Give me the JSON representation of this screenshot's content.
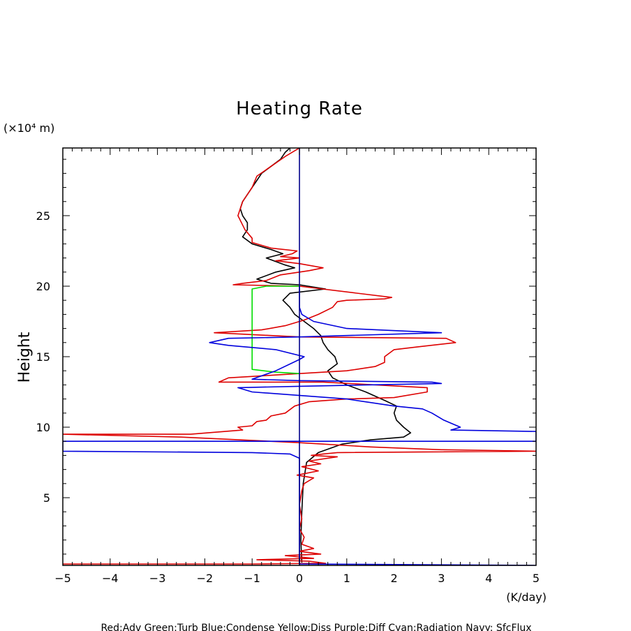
{
  "chart_data": {
    "type": "line",
    "title": "Heating Rate",
    "ylabel": "Height",
    "yunit": "(×10⁴ m)",
    "xunit": "(K/day)",
    "xlim": [
      -5,
      5
    ],
    "ylim": [
      0.2,
      29.8
    ],
    "xticks": [
      -5,
      -4,
      -3,
      -2,
      -1,
      0,
      1,
      2,
      3,
      4,
      5
    ],
    "yticks": [
      5,
      10,
      15,
      20,
      25
    ],
    "grid": false,
    "footer": "Red:Adv  Green:Turb  Blue:Condense  Yellow:Diss  Purple:Diff  Cyan:Radiation  Navy: SfcFlux",
    "colors": {
      "black": "#000000",
      "red": "#dd0000",
      "green": "#00dd00",
      "blue": "#0000dd",
      "navy": "#00008b"
    },
    "series": [
      {
        "color": "#000000",
        "points": [
          [
            0.05,
            0.4
          ],
          [
            0.03,
            2.0
          ],
          [
            0.05,
            4.0
          ],
          [
            0.08,
            6.0
          ],
          [
            0.15,
            7.5
          ],
          [
            0.4,
            8.2
          ],
          [
            0.9,
            8.8
          ],
          [
            1.5,
            9.1
          ],
          [
            2.2,
            9.3
          ],
          [
            2.35,
            9.6
          ],
          [
            2.2,
            10.0
          ],
          [
            2.05,
            10.5
          ],
          [
            2.0,
            11.0
          ],
          [
            2.05,
            11.5
          ],
          [
            1.8,
            11.9
          ],
          [
            1.4,
            12.5
          ],
          [
            1.0,
            13.0
          ],
          [
            0.7,
            13.5
          ],
          [
            0.6,
            14.0
          ],
          [
            0.8,
            14.5
          ],
          [
            0.75,
            15.0
          ],
          [
            0.6,
            15.5
          ],
          [
            0.5,
            16.0
          ],
          [
            0.45,
            16.5
          ],
          [
            0.3,
            17.0
          ],
          [
            0.1,
            17.5
          ],
          [
            -0.1,
            18.0
          ],
          [
            -0.2,
            18.5
          ],
          [
            -0.35,
            19.0
          ],
          [
            -0.2,
            19.5
          ],
          [
            0.55,
            19.8
          ],
          [
            0.0,
            20.1
          ],
          [
            -0.6,
            20.2
          ],
          [
            -0.9,
            20.5
          ],
          [
            -0.5,
            21.0
          ],
          [
            -0.1,
            21.3
          ],
          [
            -0.3,
            21.5
          ],
          [
            -0.7,
            22.0
          ],
          [
            -0.35,
            22.3
          ],
          [
            -0.6,
            22.6
          ],
          [
            -1.0,
            23.0
          ],
          [
            -1.2,
            23.5
          ],
          [
            -1.1,
            24.0
          ],
          [
            -1.1,
            24.5
          ],
          [
            -1.2,
            25.0
          ],
          [
            -1.25,
            25.5
          ],
          [
            -1.2,
            26.0
          ],
          [
            -1.1,
            26.5
          ],
          [
            -1.0,
            27.0
          ],
          [
            -0.9,
            27.5
          ],
          [
            -0.8,
            28.0
          ],
          [
            -0.6,
            28.5
          ],
          [
            -0.4,
            29.0
          ],
          [
            -0.3,
            29.5
          ],
          [
            -0.2,
            29.8
          ]
        ]
      },
      {
        "color": "#dd0000",
        "points": [
          [
            -5.0,
            0.3
          ],
          [
            -1.0,
            0.3
          ],
          [
            0.55,
            0.35
          ],
          [
            0.2,
            0.5
          ],
          [
            -0.9,
            0.6
          ],
          [
            0.3,
            0.7
          ],
          [
            -0.3,
            0.9
          ],
          [
            0.45,
            1.0
          ],
          [
            0.0,
            1.2
          ],
          [
            0.3,
            1.4
          ],
          [
            0.05,
            1.7
          ],
          [
            0.1,
            2.2
          ],
          [
            0.0,
            2.8
          ],
          [
            0.05,
            3.5
          ],
          [
            0.0,
            4.5
          ],
          [
            0.05,
            5.5
          ],
          [
            0.1,
            6.0
          ],
          [
            0.3,
            6.4
          ],
          [
            -0.05,
            6.6
          ],
          [
            0.4,
            6.9
          ],
          [
            0.05,
            7.2
          ],
          [
            0.45,
            7.4
          ],
          [
            0.2,
            7.6
          ],
          [
            0.8,
            7.9
          ],
          [
            0.25,
            8.0
          ],
          [
            0.5,
            8.1
          ],
          [
            0.8,
            8.2
          ],
          [
            5.0,
            8.3
          ],
          [
            3.0,
            8.4
          ],
          [
            1.5,
            8.6
          ],
          [
            0.0,
            8.9
          ],
          [
            -2.5,
            9.3
          ],
          [
            -5.0,
            9.5
          ],
          [
            -2.7,
            9.5
          ],
          [
            -2.3,
            9.5
          ],
          [
            -1.2,
            9.8
          ],
          [
            -1.3,
            10.0
          ],
          [
            -1.0,
            10.1
          ],
          [
            -0.9,
            10.4
          ],
          [
            -0.7,
            10.5
          ],
          [
            -0.6,
            10.8
          ],
          [
            -0.3,
            11.0
          ],
          [
            -0.1,
            11.5
          ],
          [
            0.2,
            11.8
          ],
          [
            1.0,
            12.0
          ],
          [
            2.0,
            12.1
          ],
          [
            2.7,
            12.5
          ],
          [
            2.7,
            12.8
          ],
          [
            0.5,
            13.2
          ],
          [
            -1.7,
            13.2
          ],
          [
            -1.5,
            13.5
          ],
          [
            0.0,
            13.8
          ],
          [
            1.0,
            14.0
          ],
          [
            1.6,
            14.3
          ],
          [
            1.8,
            14.6
          ],
          [
            1.8,
            15.0
          ],
          [
            2.0,
            15.5
          ],
          [
            2.5,
            15.7
          ],
          [
            3.3,
            16.0
          ],
          [
            3.1,
            16.3
          ],
          [
            0.0,
            16.4
          ],
          [
            -1.8,
            16.7
          ],
          [
            -0.8,
            16.9
          ],
          [
            -0.3,
            17.2
          ],
          [
            0.1,
            17.6
          ],
          [
            0.4,
            18.0
          ],
          [
            0.7,
            18.5
          ],
          [
            0.8,
            18.9
          ],
          [
            1.0,
            19.0
          ],
          [
            1.8,
            19.1
          ],
          [
            1.95,
            19.2
          ],
          [
            0.0,
            20.0
          ],
          [
            -1.4,
            20.1
          ],
          [
            -1.2,
            20.2
          ],
          [
            -0.7,
            20.4
          ],
          [
            -0.4,
            20.8
          ],
          [
            0.2,
            21.1
          ],
          [
            0.5,
            21.3
          ],
          [
            0.0,
            21.6
          ],
          [
            -0.5,
            21.8
          ],
          [
            0.0,
            22.0
          ],
          [
            -0.4,
            22.1
          ],
          [
            -0.15,
            22.3
          ],
          [
            -0.05,
            22.5
          ],
          [
            -0.6,
            22.7
          ],
          [
            -1.0,
            23.1
          ],
          [
            -1.0,
            23.4
          ],
          [
            -1.15,
            24.0
          ],
          [
            -1.3,
            25.0
          ],
          [
            -1.2,
            26.0
          ],
          [
            -1.0,
            27.0
          ],
          [
            -0.9,
            27.8
          ],
          [
            -0.6,
            28.5
          ],
          [
            -0.3,
            29.2
          ],
          [
            0.0,
            29.8
          ]
        ]
      },
      {
        "color": "#00dd00",
        "points": [
          [
            0.0,
            13.8
          ],
          [
            -0.5,
            13.9
          ],
          [
            -1.0,
            14.1
          ],
          [
            -1.0,
            15.0
          ],
          [
            -1.0,
            16.0
          ],
          [
            -1.0,
            17.0
          ],
          [
            -1.0,
            18.0
          ],
          [
            -1.0,
            19.0
          ],
          [
            -1.0,
            19.8
          ],
          [
            -0.7,
            20.0
          ],
          [
            0.0,
            20.0
          ]
        ]
      },
      {
        "color": "#0000dd",
        "points": [
          [
            5.0,
            0.2
          ],
          [
            0.0,
            0.3
          ],
          [
            0.0,
            7.8
          ],
          [
            -0.2,
            8.1
          ],
          [
            -1.0,
            8.2
          ],
          [
            -5.0,
            8.3
          ],
          [
            -5.0,
            9.0
          ],
          [
            5.0,
            9.0
          ],
          [
            5.0,
            9.7
          ],
          [
            3.2,
            9.8
          ],
          [
            3.4,
            10.0
          ],
          [
            3.05,
            10.5
          ],
          [
            2.8,
            11.0
          ],
          [
            2.6,
            11.3
          ],
          [
            2.0,
            11.5
          ],
          [
            1.0,
            12.0
          ],
          [
            -1.0,
            12.5
          ],
          [
            -1.3,
            12.8
          ],
          [
            0.0,
            12.9
          ],
          [
            3.0,
            13.1
          ],
          [
            2.8,
            13.2
          ],
          [
            0.0,
            13.3
          ],
          [
            -1.0,
            13.4
          ],
          [
            -0.5,
            14.0
          ],
          [
            0.0,
            14.8
          ],
          [
            0.1,
            15.0
          ],
          [
            -0.5,
            15.5
          ],
          [
            -1.5,
            15.8
          ],
          [
            -1.9,
            16.0
          ],
          [
            -1.5,
            16.3
          ],
          [
            0.0,
            16.4
          ],
          [
            3.0,
            16.7
          ],
          [
            1.0,
            17.0
          ],
          [
            0.3,
            17.5
          ],
          [
            0.05,
            18.0
          ],
          [
            0.0,
            18.5
          ],
          [
            0.0,
            19.5
          ],
          [
            0.0,
            20.0
          ]
        ]
      },
      {
        "color": "#00008b",
        "points": [
          [
            0.0,
            0.2
          ],
          [
            0.0,
            29.8
          ]
        ]
      }
    ]
  }
}
